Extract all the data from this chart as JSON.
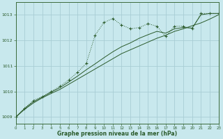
{
  "title": "Graphe pression niveau de la mer (hPa)",
  "background_color": "#c8e8ed",
  "grid_color": "#a8cdd4",
  "line_color": "#2a5a2a",
  "xlim": [
    0,
    23
  ],
  "ylim": [
    1008.75,
    1013.5
  ],
  "yticks": [
    1009,
    1010,
    1011,
    1012,
    1013
  ],
  "xticks": [
    0,
    1,
    2,
    3,
    4,
    5,
    6,
    7,
    8,
    9,
    10,
    11,
    12,
    13,
    14,
    15,
    16,
    17,
    18,
    19,
    20,
    21,
    22,
    23
  ],
  "hours": [
    0,
    1,
    2,
    3,
    4,
    5,
    6,
    7,
    8,
    9,
    10,
    11,
    12,
    13,
    14,
    15,
    16,
    17,
    18,
    19,
    20,
    21,
    22,
    23
  ],
  "curve_marked": [
    1009.0,
    1009.35,
    1009.65,
    1009.8,
    1010.0,
    1010.2,
    1010.45,
    1010.75,
    1011.1,
    1012.2,
    1012.7,
    1012.85,
    1012.6,
    1012.45,
    1012.5,
    1012.65,
    1012.55,
    1012.15,
    1012.55,
    1012.55,
    1012.45,
    1013.05,
    1013.05,
    1013.05
  ],
  "curve_solid1": [
    1009.0,
    1009.3,
    1009.55,
    1009.75,
    1009.92,
    1010.08,
    1010.28,
    1010.48,
    1010.68,
    1010.88,
    1011.08,
    1011.28,
    1011.48,
    1011.63,
    1011.78,
    1011.93,
    1012.08,
    1012.2,
    1012.35,
    1012.45,
    1012.57,
    1012.68,
    1012.83,
    1013.0
  ],
  "curve_solid2": [
    1009.0,
    1009.33,
    1009.6,
    1009.78,
    1009.97,
    1010.15,
    1010.37,
    1010.6,
    1010.85,
    1011.08,
    1011.32,
    1011.55,
    1011.75,
    1011.9,
    1012.08,
    1012.22,
    1012.35,
    1012.28,
    1012.45,
    1012.5,
    1012.48,
    1013.0,
    1013.05,
    1013.05
  ]
}
